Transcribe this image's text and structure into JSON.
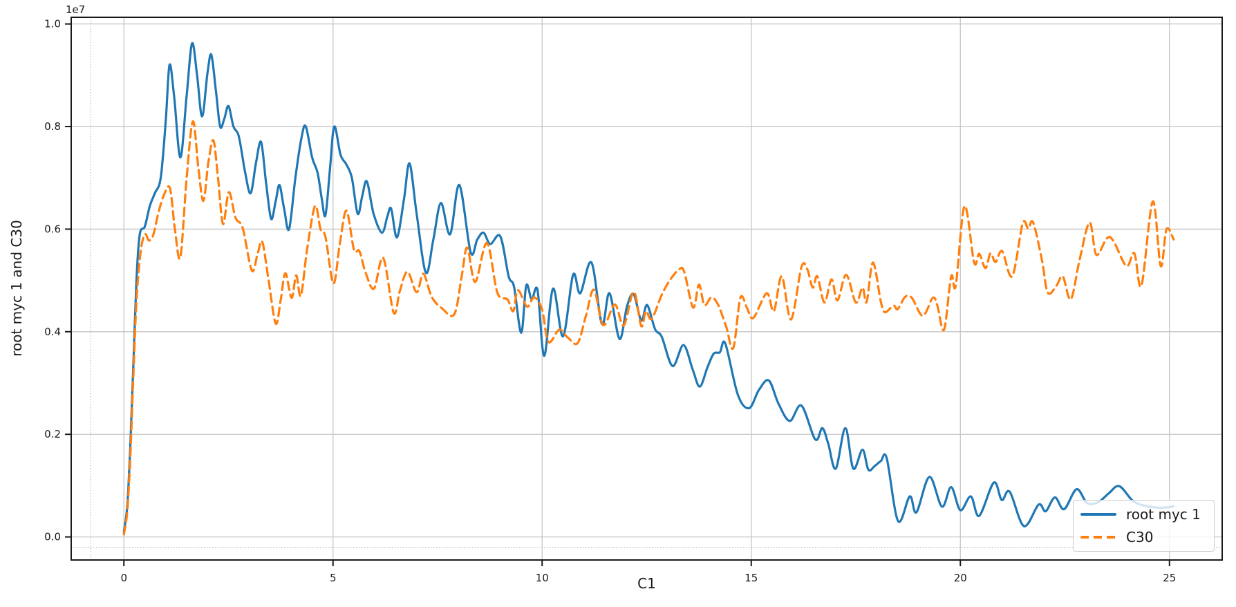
{
  "figure": {
    "offset_text": "1e7",
    "xlabel": "C1",
    "ylabel": "root myc 1 and C30",
    "background_color": "#ffffff",
    "grid_color": "#c6c6c6",
    "spine_color": "#1a1a1a",
    "tick_text_color": "#1a1a1a"
  },
  "legend": {
    "position": "lower right",
    "entries": [
      {
        "label": "root myc 1",
        "color": "#1f77b4",
        "linestyle": "solid"
      },
      {
        "label": "C30",
        "color": "#ff7f0e",
        "linestyle": "dashed"
      }
    ]
  },
  "chart_data": {
    "type": "line",
    "title": "",
    "xlabel": "C1",
    "ylabel": "root myc 1 and C30",
    "y_offset_factor": "1e7",
    "y_unit_multiplier": 10000000,
    "grid": true,
    "xlim": [
      -1.26,
      26.26
    ],
    "ylim": [
      -0.045,
      1.013
    ],
    "x_ticks": [
      0,
      5,
      10,
      15,
      20,
      25
    ],
    "y_ticks": [
      0.0,
      0.2,
      0.4,
      0.6,
      0.8,
      1.0
    ],
    "extra_dotted_gridlines": {
      "vline_x": -0.79,
      "hline_y": -0.02
    },
    "legend_position": "lower right",
    "series": [
      {
        "name": "root myc 1",
        "color": "#1f77b4",
        "linestyle": "solid",
        "linewidth": 3.2,
        "points": [
          [
            0.0,
            0.01
          ],
          [
            0.08,
            0.06
          ],
          [
            0.15,
            0.17
          ],
          [
            0.22,
            0.32
          ],
          [
            0.3,
            0.5
          ],
          [
            0.38,
            0.59
          ],
          [
            0.5,
            0.605
          ],
          [
            0.62,
            0.645
          ],
          [
            0.74,
            0.67
          ],
          [
            0.88,
            0.7
          ],
          [
            1.0,
            0.81
          ],
          [
            1.09,
            0.92
          ],
          [
            1.2,
            0.86
          ],
          [
            1.35,
            0.74
          ],
          [
            1.5,
            0.86
          ],
          [
            1.63,
            0.962
          ],
          [
            1.75,
            0.9
          ],
          [
            1.87,
            0.82
          ],
          [
            2.0,
            0.905
          ],
          [
            2.09,
            0.94
          ],
          [
            2.2,
            0.87
          ],
          [
            2.3,
            0.8
          ],
          [
            2.4,
            0.815
          ],
          [
            2.5,
            0.84
          ],
          [
            2.62,
            0.8
          ],
          [
            2.75,
            0.78
          ],
          [
            2.9,
            0.71
          ],
          [
            3.03,
            0.67
          ],
          [
            3.16,
            0.73
          ],
          [
            3.28,
            0.77
          ],
          [
            3.4,
            0.69
          ],
          [
            3.52,
            0.62
          ],
          [
            3.63,
            0.655
          ],
          [
            3.72,
            0.686
          ],
          [
            3.83,
            0.64
          ],
          [
            3.95,
            0.6
          ],
          [
            4.1,
            0.7
          ],
          [
            4.25,
            0.78
          ],
          [
            4.35,
            0.8
          ],
          [
            4.5,
            0.74
          ],
          [
            4.63,
            0.71
          ],
          [
            4.73,
            0.66
          ],
          [
            4.82,
            0.627
          ],
          [
            4.93,
            0.72
          ],
          [
            5.03,
            0.8
          ],
          [
            5.18,
            0.745
          ],
          [
            5.32,
            0.726
          ],
          [
            5.45,
            0.7
          ],
          [
            5.59,
            0.63
          ],
          [
            5.7,
            0.665
          ],
          [
            5.81,
            0.693
          ],
          [
            5.97,
            0.63
          ],
          [
            6.17,
            0.593
          ],
          [
            6.3,
            0.625
          ],
          [
            6.39,
            0.64
          ],
          [
            6.53,
            0.584
          ],
          [
            6.7,
            0.66
          ],
          [
            6.83,
            0.728
          ],
          [
            7.0,
            0.63
          ],
          [
            7.22,
            0.515
          ],
          [
            7.4,
            0.58
          ],
          [
            7.58,
            0.651
          ],
          [
            7.8,
            0.59
          ],
          [
            8.02,
            0.686
          ],
          [
            8.29,
            0.555
          ],
          [
            8.45,
            0.58
          ],
          [
            8.6,
            0.593
          ],
          [
            8.76,
            0.571
          ],
          [
            9.0,
            0.586
          ],
          [
            9.2,
            0.508
          ],
          [
            9.33,
            0.487
          ],
          [
            9.5,
            0.398
          ],
          [
            9.62,
            0.49
          ],
          [
            9.75,
            0.463
          ],
          [
            9.89,
            0.481
          ],
          [
            10.05,
            0.353
          ],
          [
            10.26,
            0.484
          ],
          [
            10.5,
            0.391
          ],
          [
            10.74,
            0.511
          ],
          [
            10.91,
            0.475
          ],
          [
            11.18,
            0.535
          ],
          [
            11.43,
            0.415
          ],
          [
            11.61,
            0.475
          ],
          [
            11.85,
            0.386
          ],
          [
            12.03,
            0.45
          ],
          [
            12.19,
            0.473
          ],
          [
            12.37,
            0.422
          ],
          [
            12.51,
            0.452
          ],
          [
            12.7,
            0.405
          ],
          [
            12.86,
            0.39
          ],
          [
            13.12,
            0.333
          ],
          [
            13.38,
            0.374
          ],
          [
            13.6,
            0.326
          ],
          [
            13.77,
            0.293
          ],
          [
            13.95,
            0.33
          ],
          [
            14.1,
            0.357
          ],
          [
            14.25,
            0.36
          ],
          [
            14.38,
            0.377
          ],
          [
            14.68,
            0.277
          ],
          [
            14.95,
            0.251
          ],
          [
            15.18,
            0.286
          ],
          [
            15.42,
            0.305
          ],
          [
            15.65,
            0.26
          ],
          [
            15.92,
            0.226
          ],
          [
            16.2,
            0.256
          ],
          [
            16.53,
            0.19
          ],
          [
            16.7,
            0.212
          ],
          [
            16.84,
            0.182
          ],
          [
            17.02,
            0.133
          ],
          [
            17.25,
            0.212
          ],
          [
            17.44,
            0.133
          ],
          [
            17.66,
            0.17
          ],
          [
            17.8,
            0.131
          ],
          [
            17.95,
            0.138
          ],
          [
            18.1,
            0.148
          ],
          [
            18.24,
            0.153
          ],
          [
            18.51,
            0.031
          ],
          [
            18.79,
            0.079
          ],
          [
            18.95,
            0.048
          ],
          [
            19.26,
            0.117
          ],
          [
            19.56,
            0.059
          ],
          [
            19.78,
            0.097
          ],
          [
            20.0,
            0.052
          ],
          [
            20.25,
            0.079
          ],
          [
            20.45,
            0.041
          ],
          [
            20.8,
            0.106
          ],
          [
            20.99,
            0.072
          ],
          [
            21.18,
            0.088
          ],
          [
            21.52,
            0.021
          ],
          [
            21.87,
            0.063
          ],
          [
            22.04,
            0.05
          ],
          [
            22.26,
            0.077
          ],
          [
            22.48,
            0.054
          ],
          [
            22.78,
            0.093
          ],
          [
            23.03,
            0.066
          ],
          [
            23.3,
            0.068
          ],
          [
            23.55,
            0.085
          ],
          [
            23.8,
            0.099
          ],
          [
            24.13,
            0.07
          ],
          [
            24.45,
            0.06
          ],
          [
            24.74,
            0.057
          ],
          [
            25.0,
            0.058
          ],
          [
            25.1,
            0.06
          ]
        ]
      },
      {
        "name": "C30",
        "color": "#ff7f0e",
        "linestyle": "dashed",
        "linewidth": 3.2,
        "points": [
          [
            0.0,
            0.005
          ],
          [
            0.08,
            0.05
          ],
          [
            0.15,
            0.15
          ],
          [
            0.22,
            0.3
          ],
          [
            0.3,
            0.46
          ],
          [
            0.4,
            0.555
          ],
          [
            0.5,
            0.59
          ],
          [
            0.6,
            0.578
          ],
          [
            0.7,
            0.588
          ],
          [
            0.82,
            0.63
          ],
          [
            0.95,
            0.665
          ],
          [
            1.1,
            0.68
          ],
          [
            1.22,
            0.6
          ],
          [
            1.35,
            0.545
          ],
          [
            1.5,
            0.7
          ],
          [
            1.65,
            0.81
          ],
          [
            1.78,
            0.72
          ],
          [
            1.9,
            0.655
          ],
          [
            2.02,
            0.73
          ],
          [
            2.14,
            0.773
          ],
          [
            2.25,
            0.7
          ],
          [
            2.37,
            0.61
          ],
          [
            2.51,
            0.672
          ],
          [
            2.67,
            0.622
          ],
          [
            2.84,
            0.602
          ],
          [
            3.06,
            0.519
          ],
          [
            3.2,
            0.553
          ],
          [
            3.31,
            0.575
          ],
          [
            3.46,
            0.5
          ],
          [
            3.63,
            0.416
          ],
          [
            3.75,
            0.462
          ],
          [
            3.86,
            0.514
          ],
          [
            4.01,
            0.466
          ],
          [
            4.12,
            0.51
          ],
          [
            4.23,
            0.47
          ],
          [
            4.38,
            0.56
          ],
          [
            4.57,
            0.645
          ],
          [
            4.7,
            0.6
          ],
          [
            4.82,
            0.585
          ],
          [
            5.01,
            0.494
          ],
          [
            5.16,
            0.57
          ],
          [
            5.32,
            0.636
          ],
          [
            5.5,
            0.56
          ],
          [
            5.63,
            0.557
          ],
          [
            5.78,
            0.515
          ],
          [
            5.98,
            0.484
          ],
          [
            6.2,
            0.544
          ],
          [
            6.45,
            0.437
          ],
          [
            6.6,
            0.48
          ],
          [
            6.78,
            0.517
          ],
          [
            7.0,
            0.477
          ],
          [
            7.16,
            0.513
          ],
          [
            7.36,
            0.468
          ],
          [
            7.6,
            0.446
          ],
          [
            7.9,
            0.434
          ],
          [
            8.08,
            0.51
          ],
          [
            8.21,
            0.564
          ],
          [
            8.4,
            0.497
          ],
          [
            8.68,
            0.573
          ],
          [
            8.93,
            0.476
          ],
          [
            9.17,
            0.463
          ],
          [
            9.31,
            0.44
          ],
          [
            9.42,
            0.481
          ],
          [
            9.64,
            0.449
          ],
          [
            9.81,
            0.467
          ],
          [
            10.0,
            0.443
          ],
          [
            10.15,
            0.38
          ],
          [
            10.41,
            0.404
          ],
          [
            10.62,
            0.388
          ],
          [
            10.85,
            0.378
          ],
          [
            11.05,
            0.432
          ],
          [
            11.24,
            0.482
          ],
          [
            11.46,
            0.413
          ],
          [
            11.74,
            0.453
          ],
          [
            11.95,
            0.412
          ],
          [
            12.19,
            0.478
          ],
          [
            12.37,
            0.411
          ],
          [
            12.48,
            0.44
          ],
          [
            12.62,
            0.425
          ],
          [
            12.85,
            0.47
          ],
          [
            13.05,
            0.5
          ],
          [
            13.28,
            0.522
          ],
          [
            13.4,
            0.516
          ],
          [
            13.61,
            0.447
          ],
          [
            13.75,
            0.492
          ],
          [
            13.88,
            0.452
          ],
          [
            14.05,
            0.467
          ],
          [
            14.21,
            0.452
          ],
          [
            14.4,
            0.41
          ],
          [
            14.57,
            0.368
          ],
          [
            14.74,
            0.466
          ],
          [
            14.9,
            0.446
          ],
          [
            15.05,
            0.427
          ],
          [
            15.37,
            0.475
          ],
          [
            15.54,
            0.44
          ],
          [
            15.73,
            0.508
          ],
          [
            15.95,
            0.424
          ],
          [
            16.2,
            0.526
          ],
          [
            16.34,
            0.522
          ],
          [
            16.47,
            0.486
          ],
          [
            16.58,
            0.508
          ],
          [
            16.75,
            0.457
          ],
          [
            16.92,
            0.502
          ],
          [
            17.06,
            0.461
          ],
          [
            17.27,
            0.511
          ],
          [
            17.5,
            0.457
          ],
          [
            17.66,
            0.486
          ],
          [
            17.76,
            0.458
          ],
          [
            17.91,
            0.535
          ],
          [
            18.1,
            0.458
          ],
          [
            18.2,
            0.438
          ],
          [
            18.4,
            0.451
          ],
          [
            18.5,
            0.444
          ],
          [
            18.68,
            0.468
          ],
          [
            18.84,
            0.466
          ],
          [
            19.1,
            0.431
          ],
          [
            19.34,
            0.466
          ],
          [
            19.45,
            0.451
          ],
          [
            19.61,
            0.404
          ],
          [
            19.78,
            0.508
          ],
          [
            19.89,
            0.49
          ],
          [
            20.1,
            0.645
          ],
          [
            20.33,
            0.535
          ],
          [
            20.45,
            0.552
          ],
          [
            20.6,
            0.524
          ],
          [
            20.72,
            0.553
          ],
          [
            20.84,
            0.536
          ],
          [
            21.0,
            0.557
          ],
          [
            21.24,
            0.508
          ],
          [
            21.49,
            0.611
          ],
          [
            21.62,
            0.601
          ],
          [
            21.74,
            0.613
          ],
          [
            21.95,
            0.54
          ],
          [
            22.09,
            0.476
          ],
          [
            22.3,
            0.49
          ],
          [
            22.45,
            0.508
          ],
          [
            22.64,
            0.463
          ],
          [
            22.85,
            0.54
          ],
          [
            23.09,
            0.613
          ],
          [
            23.25,
            0.55
          ],
          [
            23.5,
            0.582
          ],
          [
            23.66,
            0.577
          ],
          [
            23.97,
            0.528
          ],
          [
            24.16,
            0.553
          ],
          [
            24.33,
            0.49
          ],
          [
            24.6,
            0.654
          ],
          [
            24.79,
            0.528
          ],
          [
            24.93,
            0.6
          ],
          [
            25.1,
            0.58
          ]
        ]
      }
    ]
  }
}
